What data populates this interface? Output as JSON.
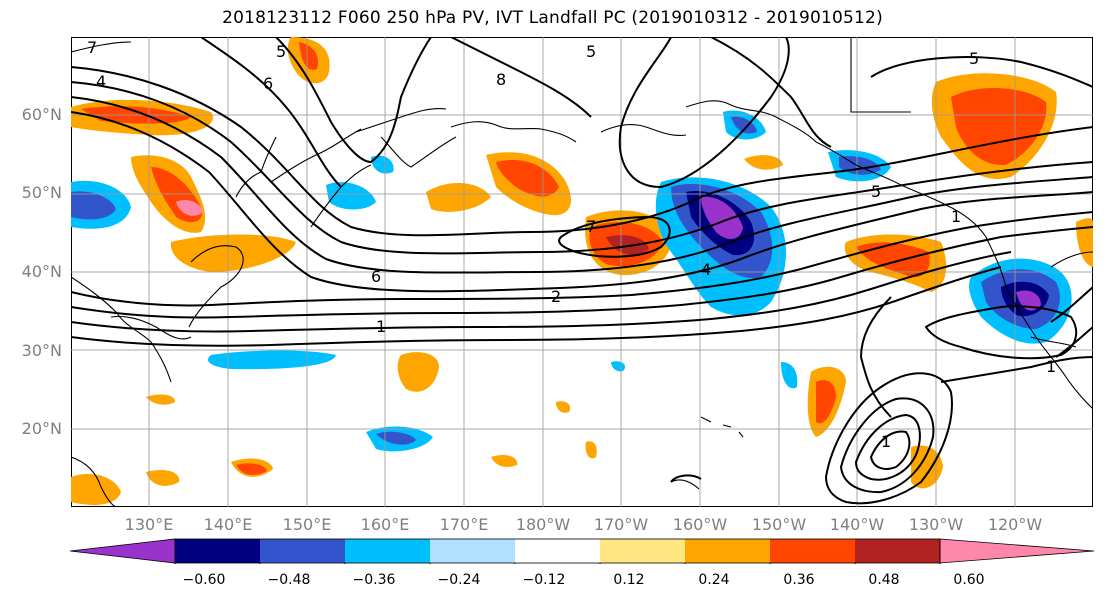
{
  "title": "2018123112 F060 250 hPa PV, IVT Landfall PC (2019010312 - 2019010512)",
  "lat_labels": [
    "60°N",
    "50°N",
    "40°N",
    "30°N",
    "20°N"
  ],
  "lon_labels": [
    "130°E",
    "140°E",
    "150°E",
    "160°E",
    "170°E",
    "180°W",
    "170°W",
    "160°W",
    "150°W",
    "140°W",
    "130°W",
    "120°W"
  ],
  "contour_labels": [
    "1",
    "2",
    "4",
    "5",
    "6",
    "7",
    "8"
  ],
  "colorbar": {
    "colors": [
      "#9933cc",
      "#000080",
      "#3355cc",
      "#00bfff",
      "#b0e0ff",
      "#ffffff",
      "#ffe680",
      "#ffa500",
      "#ff4500",
      "#b22222",
      "#ff88aa"
    ],
    "ticks": [
      "−0.60",
      "−0.48",
      "−0.36",
      "−0.24",
      "−0.12",
      "0.12",
      "0.24",
      "0.36",
      "0.48",
      "0.60"
    ]
  },
  "map": {
    "lon_range": [
      120,
      250
    ],
    "lat_range": [
      10,
      70
    ],
    "projection": "PlateCarree",
    "gridlines": true
  }
}
